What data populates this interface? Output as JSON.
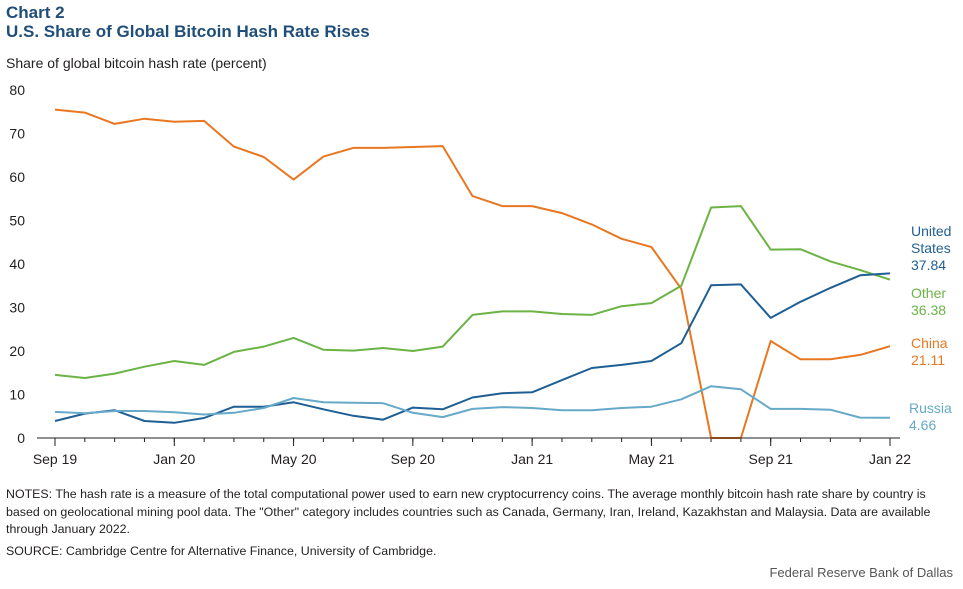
{
  "chart_number": "Chart 2",
  "title": "U.S. Share of Global Bitcoin Hash Rate Rises",
  "footer": {
    "notes": "NOTES: The hash rate is a measure of the total computational power used to earn new cryptocurrency coins. The average monthly bitcoin hash rate share by country is based on geolocational mining pool data. The \"Other\" category includes countries such as Canada, Germany, Iran, Ireland, Kazakhstan and Malaysia. Data are available through January 2022.",
    "source": "SOURCE: Cambridge Centre for Alternative Finance, University of Cambridge.",
    "credit": "Federal Reserve Bank of Dallas"
  },
  "end_labels": {
    "united_states": {
      "name_line1": "United",
      "name_line2": "States",
      "value": "37.84"
    },
    "other": {
      "name": "Other",
      "value": "36.38"
    },
    "china": {
      "name": "China",
      "value": "21.11"
    },
    "russia": {
      "name": "Russia",
      "value": "4.66"
    }
  },
  "chart_data": {
    "type": "line",
    "ylabel": "Share of global bitcoin hash rate (percent)",
    "ylim": [
      0,
      80
    ],
    "yticks": [
      0,
      10,
      20,
      30,
      40,
      50,
      60,
      70,
      80
    ],
    "grid": false,
    "x": [
      "Sep 19",
      "Oct 19",
      "Nov 19",
      "Dec 19",
      "Jan 20",
      "Feb 20",
      "Mar 20",
      "Apr 20",
      "May 20",
      "Jun 20",
      "Jul 20",
      "Aug 20",
      "Sep 20",
      "Oct 20",
      "Nov 20",
      "Dec 20",
      "Jan 21",
      "Feb 21",
      "Mar 21",
      "Apr 21",
      "May 21",
      "Jun 21",
      "Jul 21",
      "Aug 21",
      "Sep 21",
      "Oct 21",
      "Nov 21",
      "Dec 21",
      "Jan 22"
    ],
    "xtick_labels": [
      "Sep 19",
      "Jan 20",
      "May 20",
      "Sep 20",
      "Jan 21",
      "May 21",
      "Sep 21",
      "Jan 22"
    ],
    "xtick_indices": [
      0,
      4,
      8,
      12,
      16,
      20,
      24,
      28
    ],
    "series": [
      {
        "name": "China",
        "color": "#e87722",
        "values": [
          75.5,
          74.8,
          72.2,
          73.4,
          72.7,
          72.9,
          67.0,
          64.6,
          59.4,
          64.7,
          66.7,
          66.7,
          66.9,
          67.1,
          55.6,
          53.3,
          53.3,
          51.7,
          49.1,
          45.8,
          43.9,
          34.3,
          0.0,
          0.0,
          22.3,
          18.1,
          18.1,
          19.1,
          21.11
        ]
      },
      {
        "name": "Other",
        "color": "#6bb345",
        "values": [
          14.5,
          13.8,
          14.8,
          16.4,
          17.7,
          16.8,
          19.8,
          21.0,
          23.0,
          20.3,
          20.1,
          20.7,
          20.0,
          21.0,
          28.3,
          29.1,
          29.1,
          28.5,
          28.3,
          30.3,
          31.0,
          35.0,
          53.0,
          53.3,
          43.3,
          43.4,
          40.6,
          38.6,
          36.38
        ]
      },
      {
        "name": "United States",
        "color": "#1f5f94",
        "values": [
          3.9,
          5.6,
          6.4,
          3.9,
          3.5,
          4.6,
          7.2,
          7.2,
          8.2,
          6.6,
          5.1,
          4.2,
          7.0,
          6.6,
          9.3,
          10.3,
          10.5,
          13.3,
          16.1,
          16.8,
          17.7,
          21.8,
          35.1,
          35.3,
          27.6,
          31.3,
          34.5,
          37.4,
          37.84
        ]
      },
      {
        "name": "Russia",
        "color": "#66a9c9",
        "values": [
          6.0,
          5.7,
          6.2,
          6.2,
          5.9,
          5.4,
          5.8,
          6.9,
          9.2,
          8.2,
          8.1,
          8.0,
          5.8,
          4.8,
          6.7,
          7.1,
          6.9,
          6.4,
          6.4,
          6.9,
          7.2,
          8.9,
          11.9,
          11.2,
          6.7,
          6.7,
          6.5,
          4.7,
          4.66
        ]
      }
    ]
  }
}
